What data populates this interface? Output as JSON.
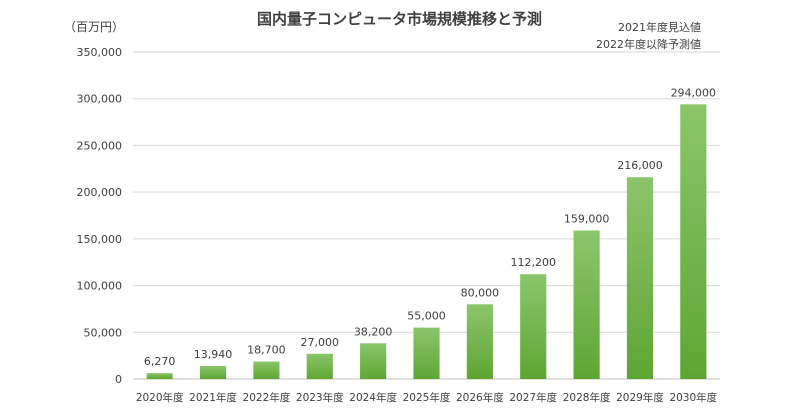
{
  "title": "国内量子コンピュータ市場規模推移と予測",
  "unit_label": "（百万円）",
  "notes": [
    "2021年度見込値",
    "2022年度以降予測値"
  ],
  "colors": {
    "bar_top": "#8cc56b",
    "bar_bottom": "#5ea632",
    "grid": "#d9d9d9",
    "text": "#404040"
  },
  "chart_data": {
    "type": "bar",
    "title": "国内量子コンピュータ市場規模推移と予測",
    "ylabel": "（百万円）",
    "categories": [
      "2020年度",
      "2021年度",
      "2022年度",
      "2023年度",
      "2024年度",
      "2025年度",
      "2026年度",
      "2027年度",
      "2028年度",
      "2029年度",
      "2030年度"
    ],
    "values": [
      6270,
      13940,
      18700,
      27000,
      38200,
      55000,
      80000,
      112200,
      159000,
      216000,
      294000
    ],
    "value_labels": [
      "6,270",
      "13,940",
      "18,700",
      "27,000",
      "38,200",
      "55,000",
      "80,000",
      "112,200",
      "159,000",
      "216,000",
      "294,000"
    ],
    "y_ticks": [
      "0",
      "50,000",
      "100,000",
      "150,000",
      "200,000",
      "250,000",
      "300,000",
      "350,000"
    ],
    "ylim": [
      0,
      350000
    ],
    "grid": true
  }
}
